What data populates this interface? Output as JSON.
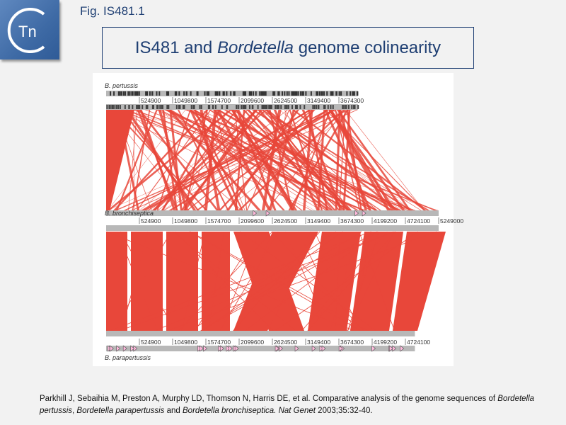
{
  "logo": {
    "text": "Tn"
  },
  "fig_label": "Fig. IS481.1",
  "title": {
    "part1": "IS481",
    "part2": " and ",
    "part3": "Bordetella",
    "part4": " genome colinearity"
  },
  "diagram": {
    "genomes": [
      {
        "name": "B. pertussis",
        "ticks": [
          "524900",
          "1049800",
          "1574700",
          "2099600",
          "2624500",
          "3149400",
          "3674300"
        ]
      },
      {
        "name": "B. bronchiseptica",
        "ticks": [
          "524900",
          "1049800",
          "1574700",
          "2099600",
          "2624500",
          "3149400",
          "3674300",
          "4199200",
          "4724100",
          "5249000"
        ]
      },
      {
        "name": "B. parapertussis",
        "ticks": [
          "524900",
          "1049800",
          "1574700",
          "2099600",
          "2624500",
          "3149400",
          "3674300",
          "4199200",
          "4724100"
        ]
      }
    ],
    "colors": {
      "match": "#e8473a",
      "bar": "#b8b8b8",
      "text": "#1f3f73"
    }
  },
  "citation": {
    "a": "Parkhill J, Sebaihia M, Preston A, Murphy LD, Thomson N, Harris DE, et al. Comparative analysis of the genome sequences of ",
    "b": "Bordetella pertussis",
    "c": ", ",
    "d": "Bordetella parapertussis",
    "e": " and ",
    "f": "Bordetella bronchiseptica.",
    "g": " ",
    "h": "Nat Genet",
    "i": " 2003;35:32-40."
  }
}
